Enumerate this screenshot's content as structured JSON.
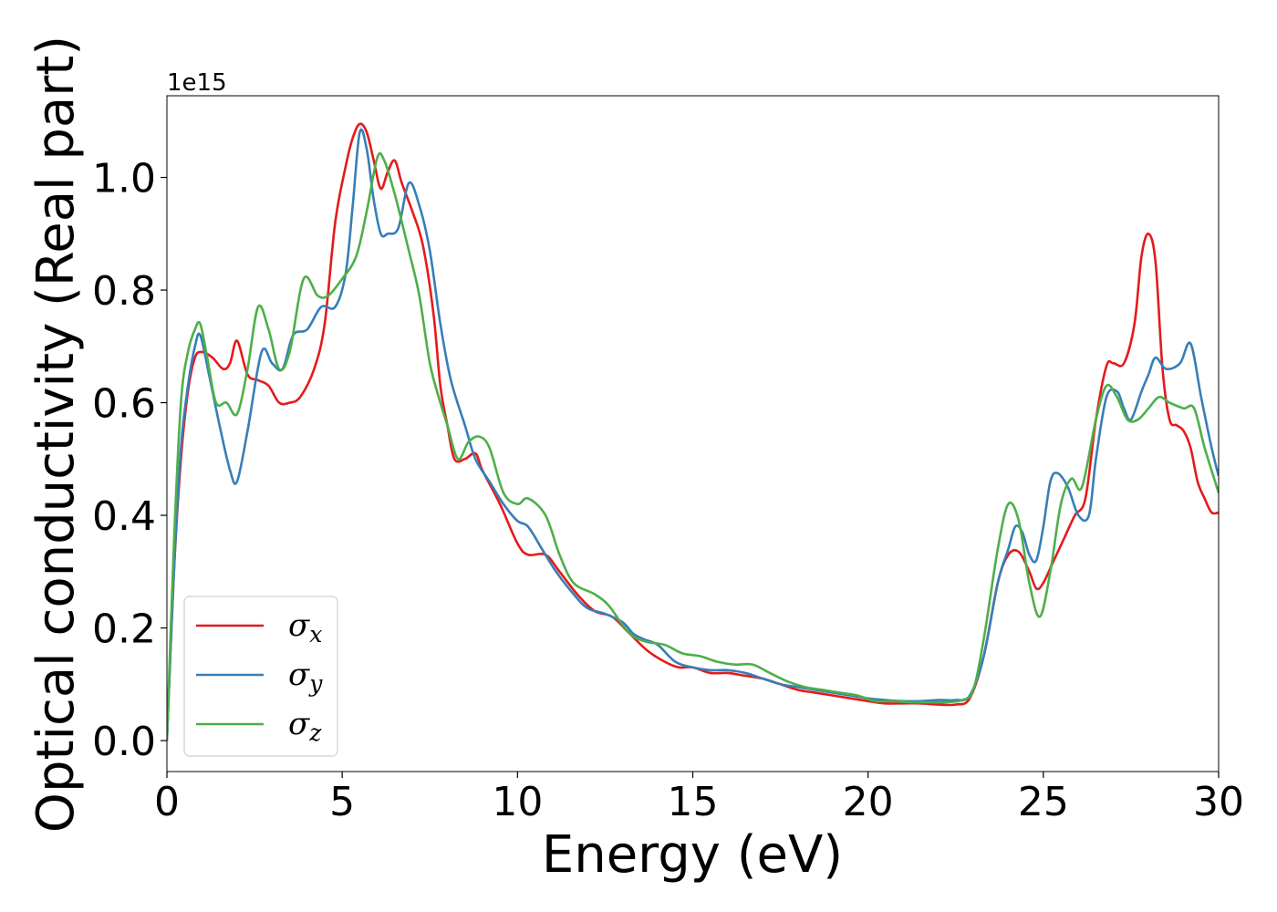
{
  "chart_data": {
    "type": "line",
    "xlabel": "Energy (eV)",
    "ylabel": "Optical conductivity (Real part)",
    "y_scale_label": "1e15",
    "y_multiplier": 1000000000000000.0,
    "xlim": [
      0,
      30
    ],
    "ylim": [
      -0.055,
      1.145
    ],
    "x_ticks": [
      0,
      5,
      10,
      15,
      20,
      25,
      30
    ],
    "y_ticks": [
      0.0,
      0.2,
      0.4,
      0.6,
      0.8,
      1.0
    ],
    "y_tick_labels": [
      "0.0",
      "0.2",
      "0.4",
      "0.6",
      "0.8",
      "1.0"
    ],
    "grid": false,
    "legend_position": "lower-left",
    "series": [
      {
        "name": "σx",
        "legend_symbol": "σ",
        "legend_sub": "x",
        "color": "#e41a1c",
        "points": [
          [
            0,
            0
          ],
          [
            0.2,
            0.3
          ],
          [
            0.4,
            0.5
          ],
          [
            0.6,
            0.62
          ],
          [
            0.8,
            0.68
          ],
          [
            1.0,
            0.69
          ],
          [
            1.3,
            0.68
          ],
          [
            1.6,
            0.66
          ],
          [
            1.8,
            0.67
          ],
          [
            2.0,
            0.71
          ],
          [
            2.3,
            0.65
          ],
          [
            2.6,
            0.64
          ],
          [
            2.9,
            0.63
          ],
          [
            3.2,
            0.6
          ],
          [
            3.5,
            0.6
          ],
          [
            3.8,
            0.61
          ],
          [
            4.2,
            0.66
          ],
          [
            4.5,
            0.74
          ],
          [
            4.8,
            0.92
          ],
          [
            5.1,
            1.02
          ],
          [
            5.3,
            1.07
          ],
          [
            5.5,
            1.095
          ],
          [
            5.7,
            1.08
          ],
          [
            5.9,
            1.03
          ],
          [
            6.1,
            0.98
          ],
          [
            6.3,
            1.01
          ],
          [
            6.5,
            1.03
          ],
          [
            6.7,
            0.99
          ],
          [
            7.0,
            0.94
          ],
          [
            7.3,
            0.88
          ],
          [
            7.6,
            0.76
          ],
          [
            7.8,
            0.63
          ],
          [
            8.0,
            0.56
          ],
          [
            8.2,
            0.5
          ],
          [
            8.5,
            0.5
          ],
          [
            8.8,
            0.51
          ],
          [
            9.0,
            0.48
          ],
          [
            9.5,
            0.42
          ],
          [
            10.0,
            0.35
          ],
          [
            10.3,
            0.33
          ],
          [
            10.8,
            0.33
          ],
          [
            11.2,
            0.3
          ],
          [
            11.7,
            0.26
          ],
          [
            12.2,
            0.23
          ],
          [
            12.7,
            0.22
          ],
          [
            13.2,
            0.19
          ],
          [
            13.7,
            0.16
          ],
          [
            14.2,
            0.14
          ],
          [
            14.6,
            0.13
          ],
          [
            15.0,
            0.13
          ],
          [
            15.5,
            0.12
          ],
          [
            16.0,
            0.12
          ],
          [
            16.5,
            0.115
          ],
          [
            17.0,
            0.11
          ],
          [
            17.5,
            0.1
          ],
          [
            18.0,
            0.09
          ],
          [
            18.5,
            0.085
          ],
          [
            19.0,
            0.08
          ],
          [
            19.5,
            0.075
          ],
          [
            20.0,
            0.07
          ],
          [
            20.5,
            0.066
          ],
          [
            21.0,
            0.066
          ],
          [
            21.5,
            0.066
          ],
          [
            22.0,
            0.064
          ],
          [
            22.5,
            0.064
          ],
          [
            22.9,
            0.075
          ],
          [
            23.3,
            0.15
          ],
          [
            23.7,
            0.28
          ],
          [
            24.0,
            0.33
          ],
          [
            24.3,
            0.335
          ],
          [
            24.6,
            0.3
          ],
          [
            24.8,
            0.27
          ],
          [
            25.0,
            0.28
          ],
          [
            25.3,
            0.32
          ],
          [
            25.6,
            0.36
          ],
          [
            25.9,
            0.4
          ],
          [
            26.2,
            0.43
          ],
          [
            26.5,
            0.57
          ],
          [
            26.8,
            0.665
          ],
          [
            27.0,
            0.67
          ],
          [
            27.3,
            0.67
          ],
          [
            27.6,
            0.74
          ],
          [
            27.8,
            0.86
          ],
          [
            28.0,
            0.9
          ],
          [
            28.2,
            0.85
          ],
          [
            28.4,
            0.66
          ],
          [
            28.6,
            0.57
          ],
          [
            28.8,
            0.56
          ],
          [
            29.0,
            0.55
          ],
          [
            29.2,
            0.52
          ],
          [
            29.4,
            0.46
          ],
          [
            29.6,
            0.43
          ],
          [
            29.8,
            0.405
          ],
          [
            30.0,
            0.405
          ]
        ]
      },
      {
        "name": "σy",
        "legend_symbol": "σ",
        "legend_sub": "y",
        "color": "#377eb8",
        "points": [
          [
            0,
            0
          ],
          [
            0.2,
            0.3
          ],
          [
            0.4,
            0.52
          ],
          [
            0.6,
            0.63
          ],
          [
            0.8,
            0.7
          ],
          [
            0.95,
            0.72
          ],
          [
            1.2,
            0.65
          ],
          [
            1.5,
            0.56
          ],
          [
            1.8,
            0.48
          ],
          [
            2.0,
            0.46
          ],
          [
            2.3,
            0.55
          ],
          [
            2.7,
            0.69
          ],
          [
            3.0,
            0.67
          ],
          [
            3.3,
            0.66
          ],
          [
            3.6,
            0.72
          ],
          [
            4.0,
            0.73
          ],
          [
            4.4,
            0.77
          ],
          [
            4.8,
            0.77
          ],
          [
            5.1,
            0.83
          ],
          [
            5.3,
            0.95
          ],
          [
            5.5,
            1.08
          ],
          [
            5.7,
            1.05
          ],
          [
            5.9,
            0.96
          ],
          [
            6.1,
            0.9
          ],
          [
            6.3,
            0.9
          ],
          [
            6.6,
            0.91
          ],
          [
            6.9,
            0.99
          ],
          [
            7.2,
            0.95
          ],
          [
            7.5,
            0.87
          ],
          [
            7.8,
            0.74
          ],
          [
            8.1,
            0.64
          ],
          [
            8.5,
            0.56
          ],
          [
            8.8,
            0.5
          ],
          [
            9.2,
            0.46
          ],
          [
            9.6,
            0.42
          ],
          [
            10.0,
            0.39
          ],
          [
            10.3,
            0.38
          ],
          [
            10.7,
            0.34
          ],
          [
            11.1,
            0.3
          ],
          [
            11.6,
            0.26
          ],
          [
            12.0,
            0.235
          ],
          [
            12.5,
            0.225
          ],
          [
            13.0,
            0.21
          ],
          [
            13.3,
            0.19
          ],
          [
            13.6,
            0.18
          ],
          [
            14.0,
            0.17
          ],
          [
            14.5,
            0.14
          ],
          [
            15.0,
            0.13
          ],
          [
            15.5,
            0.125
          ],
          [
            16.0,
            0.125
          ],
          [
            16.5,
            0.12
          ],
          [
            17.0,
            0.11
          ],
          [
            17.5,
            0.1
          ],
          [
            18.0,
            0.095
          ],
          [
            18.5,
            0.09
          ],
          [
            19.0,
            0.085
          ],
          [
            19.5,
            0.08
          ],
          [
            20.0,
            0.075
          ],
          [
            20.5,
            0.072
          ],
          [
            21.0,
            0.07
          ],
          [
            21.5,
            0.07
          ],
          [
            22.0,
            0.072
          ],
          [
            22.5,
            0.072
          ],
          [
            22.9,
            0.08
          ],
          [
            23.3,
            0.15
          ],
          [
            23.7,
            0.28
          ],
          [
            24.0,
            0.34
          ],
          [
            24.2,
            0.38
          ],
          [
            24.4,
            0.37
          ],
          [
            24.6,
            0.33
          ],
          [
            24.8,
            0.32
          ],
          [
            25.0,
            0.38
          ],
          [
            25.2,
            0.46
          ],
          [
            25.4,
            0.475
          ],
          [
            25.7,
            0.45
          ],
          [
            26.0,
            0.4
          ],
          [
            26.3,
            0.4
          ],
          [
            26.5,
            0.5
          ],
          [
            26.8,
            0.61
          ],
          [
            27.1,
            0.62
          ],
          [
            27.3,
            0.59
          ],
          [
            27.5,
            0.57
          ],
          [
            27.8,
            0.62
          ],
          [
            28.0,
            0.65
          ],
          [
            28.2,
            0.68
          ],
          [
            28.5,
            0.66
          ],
          [
            28.9,
            0.67
          ],
          [
            29.2,
            0.705
          ],
          [
            29.5,
            0.61
          ],
          [
            29.8,
            0.52
          ],
          [
            30.0,
            0.47
          ]
        ]
      },
      {
        "name": "σz",
        "legend_symbol": "σ",
        "legend_sub": "z",
        "color": "#4daf4a",
        "points": [
          [
            0,
            0
          ],
          [
            0.2,
            0.35
          ],
          [
            0.4,
            0.6
          ],
          [
            0.6,
            0.69
          ],
          [
            0.8,
            0.73
          ],
          [
            0.95,
            0.74
          ],
          [
            1.15,
            0.68
          ],
          [
            1.4,
            0.6
          ],
          [
            1.7,
            0.6
          ],
          [
            2.0,
            0.58
          ],
          [
            2.3,
            0.66
          ],
          [
            2.6,
            0.77
          ],
          [
            2.9,
            0.73
          ],
          [
            3.2,
            0.66
          ],
          [
            3.5,
            0.69
          ],
          [
            3.9,
            0.82
          ],
          [
            4.3,
            0.79
          ],
          [
            4.6,
            0.79
          ],
          [
            5.0,
            0.82
          ],
          [
            5.4,
            0.86
          ],
          [
            5.7,
            0.94
          ],
          [
            6.0,
            1.035
          ],
          [
            6.2,
            1.03
          ],
          [
            6.5,
            0.97
          ],
          [
            6.9,
            0.87
          ],
          [
            7.2,
            0.79
          ],
          [
            7.5,
            0.67
          ],
          [
            7.8,
            0.6
          ],
          [
            8.0,
            0.56
          ],
          [
            8.3,
            0.5
          ],
          [
            8.6,
            0.53
          ],
          [
            8.9,
            0.54
          ],
          [
            9.2,
            0.52
          ],
          [
            9.6,
            0.44
          ],
          [
            10.0,
            0.42
          ],
          [
            10.3,
            0.43
          ],
          [
            10.8,
            0.4
          ],
          [
            11.2,
            0.33
          ],
          [
            11.6,
            0.28
          ],
          [
            12.2,
            0.26
          ],
          [
            12.6,
            0.24
          ],
          [
            13.0,
            0.205
          ],
          [
            13.3,
            0.185
          ],
          [
            13.7,
            0.175
          ],
          [
            14.2,
            0.17
          ],
          [
            14.7,
            0.155
          ],
          [
            15.2,
            0.15
          ],
          [
            15.7,
            0.14
          ],
          [
            16.2,
            0.135
          ],
          [
            16.7,
            0.135
          ],
          [
            17.2,
            0.12
          ],
          [
            17.7,
            0.105
          ],
          [
            18.2,
            0.095
          ],
          [
            18.7,
            0.09
          ],
          [
            19.2,
            0.085
          ],
          [
            19.7,
            0.08
          ],
          [
            20.2,
            0.07
          ],
          [
            20.7,
            0.07
          ],
          [
            21.2,
            0.068
          ],
          [
            21.7,
            0.068
          ],
          [
            22.2,
            0.068
          ],
          [
            22.7,
            0.072
          ],
          [
            23.0,
            0.09
          ],
          [
            23.3,
            0.18
          ],
          [
            23.7,
            0.34
          ],
          [
            24.0,
            0.42
          ],
          [
            24.3,
            0.39
          ],
          [
            24.6,
            0.28
          ],
          [
            24.9,
            0.22
          ],
          [
            25.2,
            0.3
          ],
          [
            25.5,
            0.42
          ],
          [
            25.8,
            0.465
          ],
          [
            26.1,
            0.45
          ],
          [
            26.5,
            0.57
          ],
          [
            26.8,
            0.63
          ],
          [
            27.1,
            0.61
          ],
          [
            27.4,
            0.57
          ],
          [
            27.7,
            0.57
          ],
          [
            28.0,
            0.59
          ],
          [
            28.3,
            0.61
          ],
          [
            28.6,
            0.6
          ],
          [
            29.0,
            0.59
          ],
          [
            29.3,
            0.59
          ],
          [
            29.6,
            0.52
          ],
          [
            30.0,
            0.44
          ]
        ]
      }
    ]
  }
}
